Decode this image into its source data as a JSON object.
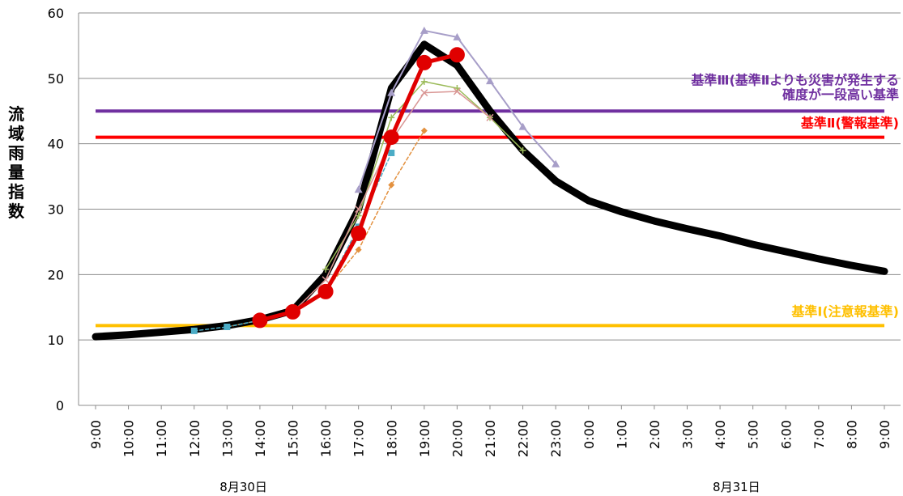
{
  "chart_data": {
    "type": "line",
    "ylabel": "流域雨量指数",
    "ylim": [
      0,
      60
    ],
    "yticks": [
      0,
      10,
      20,
      30,
      40,
      50,
      60
    ],
    "categories": [
      "9:00",
      "10:00",
      "11:00",
      "12:00",
      "13:00",
      "14:00",
      "15:00",
      "16:00",
      "17:00",
      "18:00",
      "19:00",
      "20:00",
      "21:00",
      "22:00",
      "23:00",
      "0:00",
      "1:00",
      "2:00",
      "3:00",
      "4:00",
      "5:00",
      "6:00",
      "7:00",
      "8:00",
      "9:00"
    ],
    "date_labels": [
      {
        "text": "8月30日",
        "at_category": 4.5
      },
      {
        "text": "8月31日",
        "at_category": 19.5
      }
    ],
    "grid": "horizontal",
    "thresholds": [
      {
        "value": 45,
        "color": "#7030a0",
        "label_lines": [
          "基準Ⅲ(基準Ⅱよりも災害が発生する",
          "確度が一段高い基準"
        ]
      },
      {
        "value": 41,
        "color": "#ff0000",
        "label_lines": [
          "基準Ⅱ(警報基準)"
        ]
      },
      {
        "value": 12.2,
        "color": "#ffc000",
        "label_lines": [
          "基準Ⅰ(注意報基準)"
        ]
      }
    ],
    "series": [
      {
        "color": "#000000",
        "width": 9,
        "marker": "none",
        "values": [
          10.5,
          10.8,
          11.2,
          11.6,
          12.2,
          13.1,
          14.5,
          20.0,
          30.0,
          48.5,
          55.2,
          52.0,
          45.0,
          39.0,
          34.3,
          31.3,
          29.6,
          28.2,
          27.0,
          25.9,
          24.6,
          23.5,
          22.4,
          21.4,
          20.5
        ]
      },
      {
        "color": "#a79ec8",
        "width": 2,
        "marker": "triangle",
        "values": [
          null,
          null,
          null,
          null,
          null,
          null,
          null,
          null,
          33.0,
          47.8,
          57.3,
          56.3,
          49.6,
          42.6,
          36.9,
          null,
          null,
          null,
          null,
          null,
          null,
          null,
          null,
          null,
          null
        ]
      },
      {
        "color": "#9bbb59",
        "width": 1.5,
        "marker": "plus",
        "values": [
          null,
          null,
          null,
          null,
          null,
          null,
          null,
          20.8,
          29.0,
          44.0,
          49.5,
          48.5,
          44.0,
          39.0,
          null,
          null,
          null,
          null,
          null,
          null,
          null,
          null,
          null,
          null,
          null
        ]
      },
      {
        "color": "#d99694",
        "width": 1.5,
        "marker": "x",
        "values": [
          null,
          null,
          null,
          null,
          null,
          null,
          14.3,
          19.2,
          30.0,
          40.5,
          47.8,
          48.0,
          44.0,
          null,
          null,
          null,
          null,
          null,
          null,
          null,
          null,
          null,
          null,
          null,
          null
        ]
      },
      {
        "color": "#e3913f",
        "width": 1.5,
        "marker": "diamond",
        "dashed": true,
        "values": [
          null,
          null,
          null,
          null,
          12.0,
          13.0,
          14.4,
          17.6,
          23.8,
          33.7,
          42.0,
          null,
          null,
          null,
          null,
          null,
          null,
          null,
          null,
          null,
          null,
          null,
          null,
          null,
          null
        ]
      },
      {
        "color": "#4bacc6",
        "width": 1.5,
        "marker": "square",
        "dashed": true,
        "values": [
          null,
          null,
          null,
          11.4,
          12.0,
          13.0,
          14.4,
          17.6,
          27.3,
          38.6,
          null,
          null,
          null,
          null,
          null,
          null,
          null,
          null,
          null,
          null,
          null,
          null,
          null,
          null,
          null
        ]
      },
      {
        "color": "#e00000",
        "width": 5,
        "marker": "circle",
        "values": [
          null,
          null,
          null,
          null,
          null,
          13.0,
          14.3,
          17.4,
          26.3,
          41.0,
          52.4,
          53.6,
          null,
          null,
          null,
          null,
          null,
          null,
          null,
          null,
          null,
          null,
          null,
          null,
          null
        ]
      }
    ]
  }
}
